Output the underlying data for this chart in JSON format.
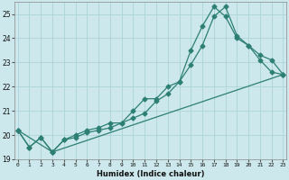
{
  "xlabel": "Humidex (Indice chaleur)",
  "ylabel": "",
  "background_color": "#cce8ec",
  "grid_color": "#aed4d8",
  "line_color": "#2d7f74",
  "xlim": [
    0,
    23
  ],
  "ylim": [
    19,
    25.5
  ],
  "yticks": [
    19,
    20,
    21,
    22,
    23,
    24,
    25
  ],
  "xticks": [
    0,
    1,
    2,
    3,
    4,
    5,
    6,
    7,
    8,
    9,
    10,
    11,
    12,
    13,
    14,
    15,
    16,
    17,
    18,
    19,
    20,
    21,
    22,
    23
  ],
  "series1_x": [
    0,
    1,
    2,
    3,
    4,
    5,
    6,
    7,
    8,
    9,
    10,
    11,
    12,
    13,
    14,
    15,
    16,
    17,
    18,
    19,
    20,
    21,
    22,
    23
  ],
  "series1_y": [
    20.2,
    19.5,
    19.9,
    19.3,
    19.8,
    19.9,
    20.1,
    20.2,
    20.3,
    20.5,
    20.7,
    20.9,
    21.4,
    21.7,
    22.2,
    22.9,
    23.7,
    24.9,
    25.3,
    24.1,
    23.7,
    23.1,
    22.6,
    22.5
  ],
  "series2_x": [
    0,
    1,
    2,
    3,
    4,
    5,
    6,
    7,
    8,
    9,
    10,
    11,
    12,
    13,
    14,
    15,
    16,
    17,
    18,
    19,
    20,
    21,
    22,
    23
  ],
  "series2_y": [
    20.2,
    19.5,
    19.9,
    19.3,
    19.8,
    20.0,
    20.2,
    20.3,
    20.5,
    20.5,
    21.0,
    21.5,
    21.5,
    22.0,
    22.2,
    23.5,
    24.5,
    25.3,
    24.9,
    24.0,
    23.7,
    23.3,
    23.1,
    22.5
  ],
  "series3_x": [
    0,
    3,
    23
  ],
  "series3_y": [
    20.2,
    19.3,
    22.5
  ]
}
